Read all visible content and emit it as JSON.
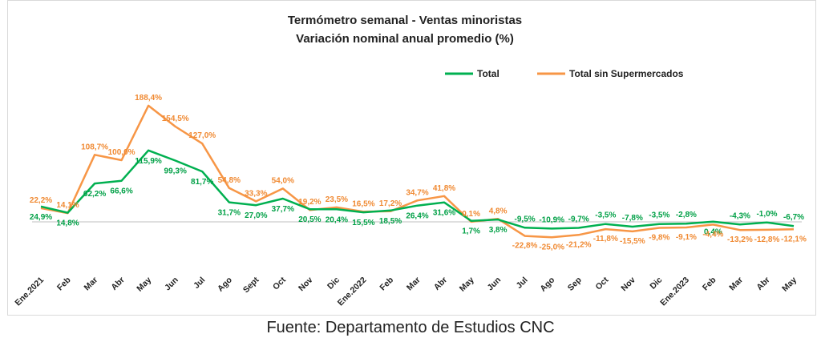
{
  "chart_data": {
    "type": "line",
    "title": "Termómetro semanal - Ventas minoristas",
    "subtitle": "Variación nominal anual promedio (%)",
    "categories": [
      "Ene.2021",
      "Feb",
      "Mar",
      "Abr",
      "May",
      "Jun",
      "Jul",
      "Ago",
      "Sept",
      "Oct",
      "Nov",
      "Dic",
      "Ene.2022",
      "Feb",
      "Mar",
      "Abr",
      "May",
      "Jun",
      "Jul",
      "Ago",
      "Sep",
      "Oct",
      "Nov",
      "Dic",
      "Ene.2023",
      "Feb",
      "Mar",
      "Abr",
      "May"
    ],
    "series": [
      {
        "name": "Total",
        "color": "#00b050",
        "values": [
          24.9,
          14.8,
          62.2,
          66.6,
          115.9,
          99.3,
          81.7,
          31.7,
          27.0,
          37.7,
          20.5,
          20.4,
          15.5,
          18.5,
          26.4,
          31.6,
          1.7,
          3.8,
          -9.5,
          -10.9,
          -9.7,
          -3.5,
          -7.8,
          -3.5,
          -2.8,
          0.4,
          -4.3,
          -1.0,
          -6.7
        ],
        "labels": [
          "24,9%",
          "14,8%",
          "62,2%",
          "66,6%",
          "115,9%",
          "99,3%",
          "81,7%",
          "31,7%",
          "27,0%",
          "37,7%",
          "20,5%",
          "20,4%",
          "15,5%",
          "18,5%",
          "26,4%",
          "31,6%",
          "1,7%",
          "3,8%",
          "-9,5%",
          "-10,9%",
          "-9,7%",
          "-3,5%",
          "-7,8%",
          "-3,5%",
          "-2,8%",
          "0,4%",
          "-4,3%",
          "-1,0%",
          "-6,7%"
        ]
      },
      {
        "name": "Total sin Supermercados",
        "color": "#f79646",
        "values": [
          22.2,
          14.1,
          108.7,
          100.0,
          188.4,
          154.5,
          127.0,
          54.8,
          33.3,
          54.0,
          19.2,
          23.5,
          16.5,
          17.2,
          34.7,
          41.8,
          0.1,
          4.8,
          -22.8,
          -25.0,
          -21.2,
          -11.8,
          -15.5,
          -9.8,
          -9.1,
          -4.4,
          -13.2,
          -12.8,
          -12.1
        ],
        "labels": [
          "22,2%",
          "14,1%",
          "108,7%",
          "100,0%",
          "188,4%",
          "154,5%",
          "127,0%",
          "54,8%",
          "33,3%",
          "54,0%",
          "19,2%",
          "23,5%",
          "16,5%",
          "17,2%",
          "34,7%",
          "41,8%",
          "0,1%",
          "4,8%",
          "-22,8%",
          "-25,0%",
          "-21,2%",
          "-11,8%",
          "-15,5%",
          "-9,8%",
          "-9,1%",
          "-4,4%",
          "-13,2%",
          "-12,8%",
          "-12,1%"
        ]
      }
    ],
    "legend_position": "top",
    "grid": false
  },
  "source": "Fuente: Departamento de Estudios CNC"
}
